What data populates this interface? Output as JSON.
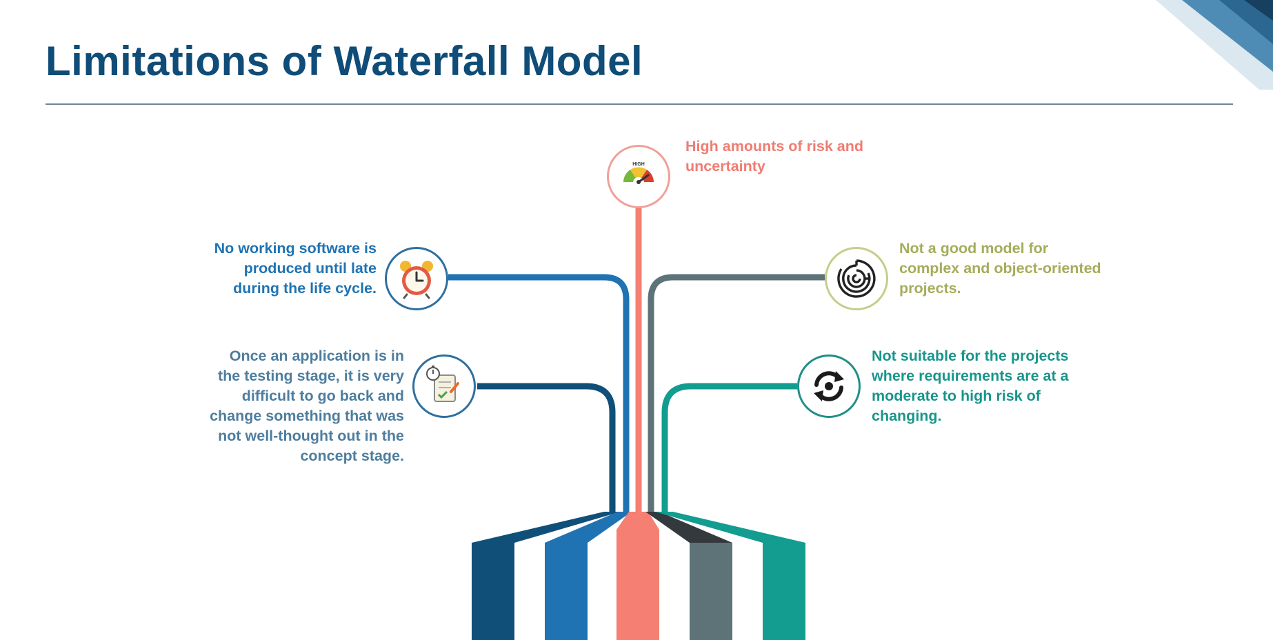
{
  "slide": {
    "title": "Limitations of Waterfall Model"
  },
  "items": [
    {
      "id": "risk",
      "lines": [
        "High amounts of risk and",
        "uncertainty"
      ],
      "color": "#f07c72",
      "icon": "high-risk-gauge-icon",
      "icon_text": "HIGH"
    },
    {
      "id": "working-software",
      "lines": [
        "No working software is",
        "produced until late",
        "during the life cycle."
      ],
      "color": "#1f73b3",
      "icon": "alarm-clock-icon"
    },
    {
      "id": "testing-stage",
      "lines": [
        "Once an application is in",
        "the testing stage, it is very",
        "difficult to go back and",
        "change something that was",
        "not well-thought out in the",
        "concept stage."
      ],
      "color": "#4e7d9e",
      "icon": "checklist-stopwatch-icon"
    },
    {
      "id": "complex-projects",
      "lines": [
        "Not a good model for",
        "complex and object-oriented",
        "projects."
      ],
      "color": "#a5ad5a",
      "icon": "maze-icon"
    },
    {
      "id": "changing-requirements",
      "lines": [
        "Not suitable for the projects",
        "where requirements are at a",
        "moderate to high risk of",
        "changing."
      ],
      "color": "#17958b",
      "icon": "refresh-cycle-icon"
    }
  ],
  "stripe_colors": {
    "stripe_1": "#0f4f78",
    "stripe_2": "#1f73b3",
    "stripe_3": "#f47f72",
    "stripe_4": "#5e7378",
    "stripe_5": "#139c90",
    "stripe_4_shade": "#33393c"
  },
  "icon_ring_colors": {
    "risk": "#f0a09a",
    "working-software": "#2f6f9e",
    "testing-stage": "#2f6f9e",
    "complex-projects": "#c8cc8a",
    "changing-requirements": "#1f8f86"
  }
}
